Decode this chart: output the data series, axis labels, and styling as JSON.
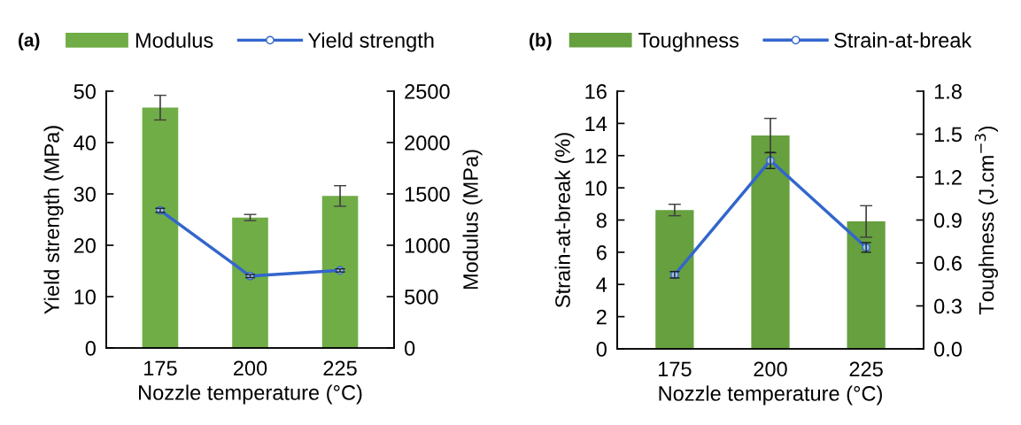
{
  "chart_data": [
    {
      "type": "bar",
      "title": "(a)",
      "xlabel": "Nozzle temperature (°C)",
      "ylabel": "Yield strength (MPa)",
      "y2label": "Modulus (MPa)",
      "categories": [
        "175",
        "200",
        "225"
      ],
      "legend": "top",
      "grid": false,
      "ylim": [
        0,
        50
      ],
      "yticks": [
        0,
        10,
        20,
        30,
        40,
        50
      ],
      "y2lim": [
        0,
        2500
      ],
      "y2ticks": [
        0,
        500,
        1000,
        1500,
        2000,
        2500
      ],
      "series": [
        {
          "name": "Modulus",
          "axis": "y2",
          "color": "#70ad47",
          "values": [
            2340,
            1270,
            1480
          ],
          "errors": [
            120,
            30,
            100
          ]
        },
        {
          "name": "Yield strength",
          "type": "line",
          "axis": "y",
          "color": "#3366cc",
          "marker": "circle",
          "values": [
            26.8,
            14.0,
            15.1
          ],
          "errors": [
            0.4,
            0.3,
            0.3
          ]
        }
      ]
    },
    {
      "type": "bar",
      "title": "(b)",
      "xlabel": "Nozzle temperature (°C)",
      "ylabel": "Strain-at-break (%)",
      "y2label": "Toughness (J.cm$^{−3}$)",
      "categories": [
        "175",
        "200",
        "225"
      ],
      "legend": "top",
      "grid": false,
      "ylim": [
        0,
        16
      ],
      "yticks": [
        0,
        2,
        4,
        6,
        8,
        10,
        12,
        14,
        16
      ],
      "y2lim": [
        0,
        1.8
      ],
      "y2ticks": [
        {
          "value": 0,
          "label": "0.0"
        },
        0.3,
        0.6,
        0.9,
        1.2,
        1.5,
        1.8
      ],
      "series": [
        {
          "name": "Toughness",
          "axis": "y2",
          "color": "#66a03f",
          "values": [
            0.97,
            1.49,
            0.89
          ],
          "errors": [
            0.04,
            0.12,
            0.11
          ]
        },
        {
          "name": "Strain-at-break",
          "type": "line",
          "axis": "y",
          "color": "#3366cc",
          "marker": "circle",
          "values": [
            4.6,
            11.7,
            6.3
          ],
          "errors": [
            0.2,
            0.5,
            0.3
          ]
        }
      ]
    }
  ]
}
